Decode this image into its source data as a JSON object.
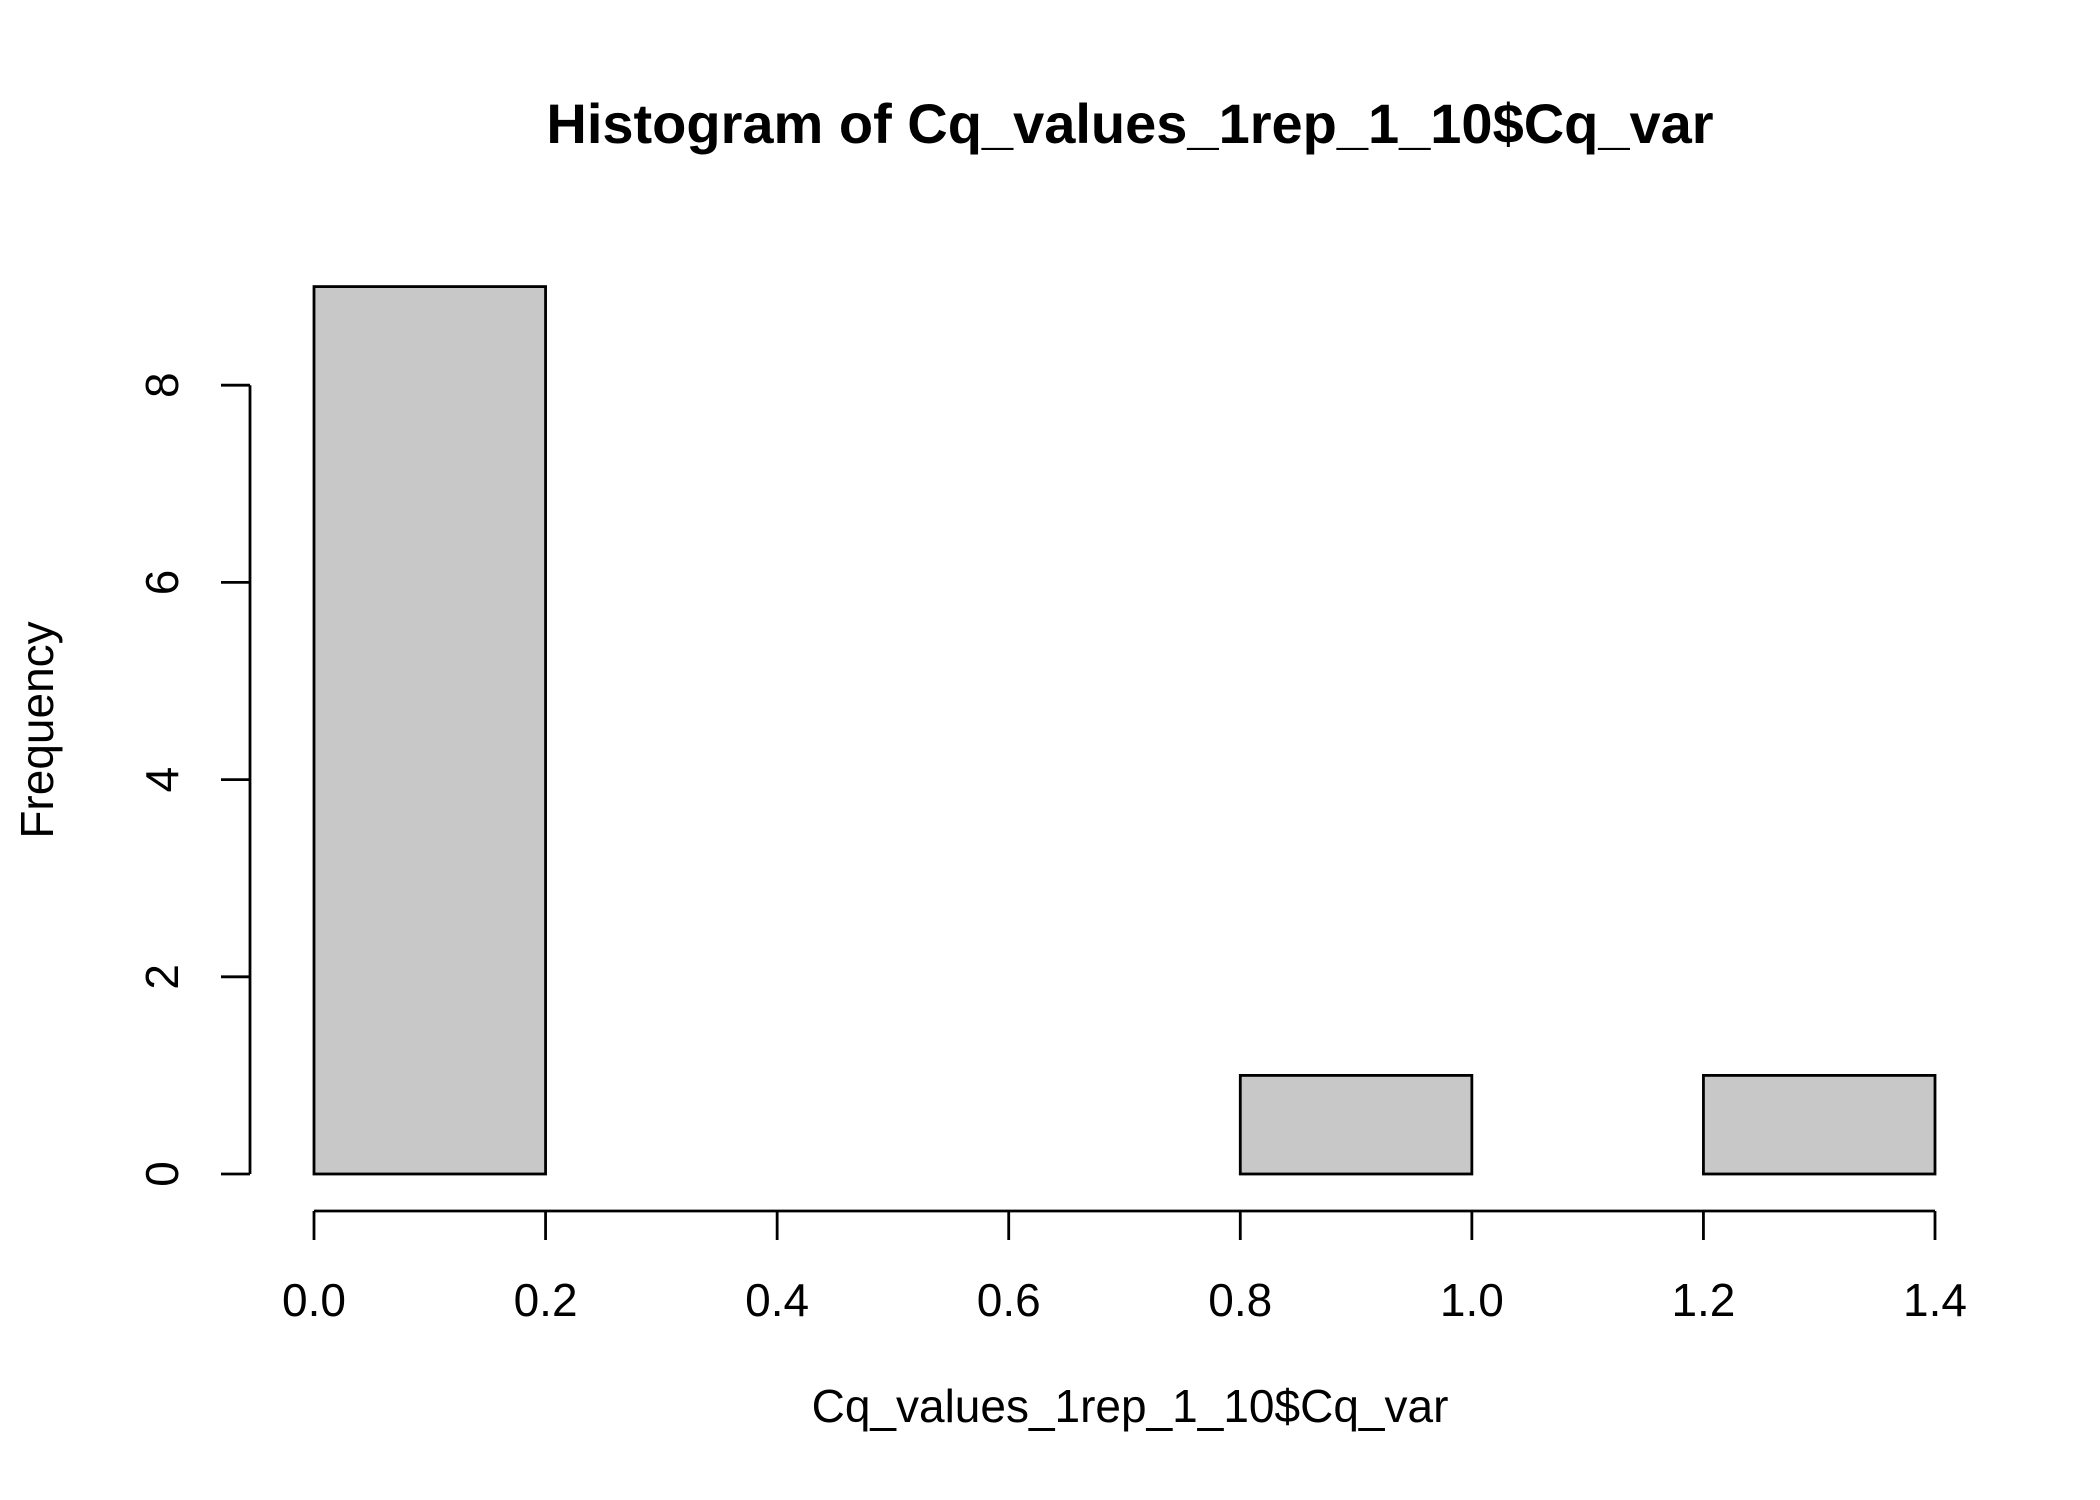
{
  "chart_data": {
    "type": "bar",
    "subtype": "histogram",
    "title": "Histogram of Cq_values_1rep_1_10$Cq_var",
    "xlabel": "Cq_values_1rep_1_10$Cq_var",
    "ylabel": "Frequency",
    "bins": [
      {
        "x0": 0.0,
        "x1": 0.2,
        "count": 9
      },
      {
        "x0": 0.2,
        "x1": 0.4,
        "count": 0
      },
      {
        "x0": 0.4,
        "x1": 0.6,
        "count": 0
      },
      {
        "x0": 0.6,
        "x1": 0.8,
        "count": 0
      },
      {
        "x0": 0.8,
        "x1": 1.0,
        "count": 1
      },
      {
        "x0": 1.0,
        "x1": 1.2,
        "count": 0
      },
      {
        "x0": 1.2,
        "x1": 1.4,
        "count": 1
      }
    ],
    "xlim": [
      0.0,
      1.4
    ],
    "ylim": [
      0,
      9
    ],
    "x_ticks": [
      0.0,
      0.2,
      0.4,
      0.6,
      0.8,
      1.0,
      1.2,
      1.4
    ],
    "x_tick_labels": [
      "0.0",
      "0.2",
      "0.4",
      "0.6",
      "0.8",
      "1.0",
      "1.2",
      "1.4"
    ],
    "y_ticks": [
      0,
      2,
      4,
      6,
      8
    ],
    "y_tick_labels": [
      "0",
      "2",
      "4",
      "6",
      "8"
    ],
    "grid": false,
    "bar_color": "#c8c8c8"
  }
}
